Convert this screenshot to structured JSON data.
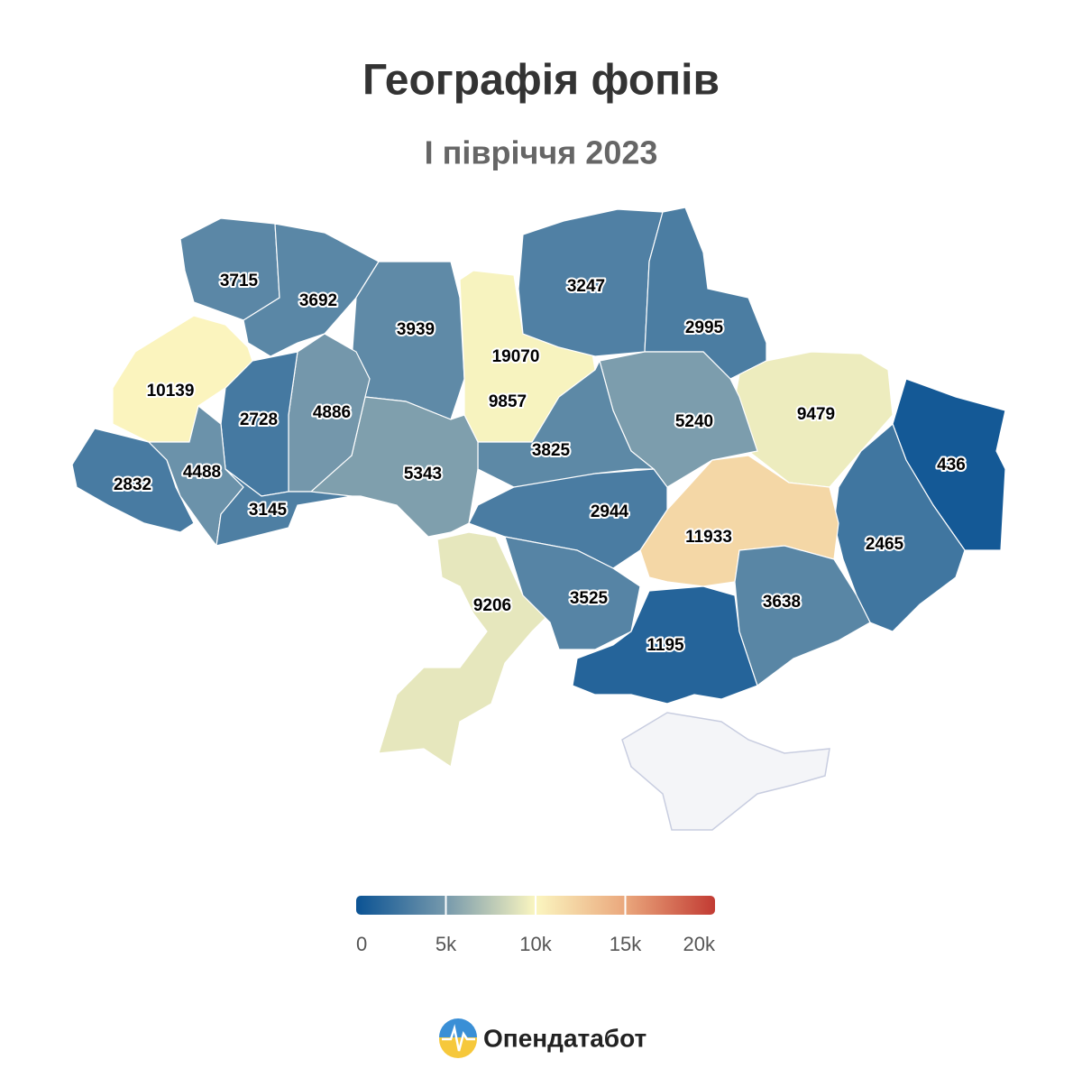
{
  "chart_data": {
    "type": "choropleth",
    "title": "Географія фопів",
    "subtitle": "І півріччя 2023",
    "values": [
      3715,
      3692,
      3939,
      19070,
      9857,
      3247,
      2995,
      9479,
      436,
      2465,
      11933,
      5240,
      3825,
      2944,
      5343,
      4886,
      2728,
      10139,
      2832,
      4488,
      3145,
      9206,
      3525,
      1195,
      3638
    ],
    "colorscale": [
      [
        0,
        "#0b5394"
      ],
      [
        5000,
        "#7699ac"
      ],
      [
        10000,
        "#fbf6c0"
      ],
      [
        15000,
        "#eaa77c"
      ],
      [
        20000,
        "#c23b33"
      ]
    ],
    "clim": [
      0,
      20000
    ],
    "cticks": [
      0,
      {
        "value": 5000,
        "label": "5k"
      },
      {
        "value": 10000,
        "label": "10k"
      },
      {
        "value": 15000,
        "label": "15k"
      },
      {
        "value": 20000,
        "label": "20k"
      }
    ]
  },
  "footer": {
    "brand": "Опендатабот"
  }
}
